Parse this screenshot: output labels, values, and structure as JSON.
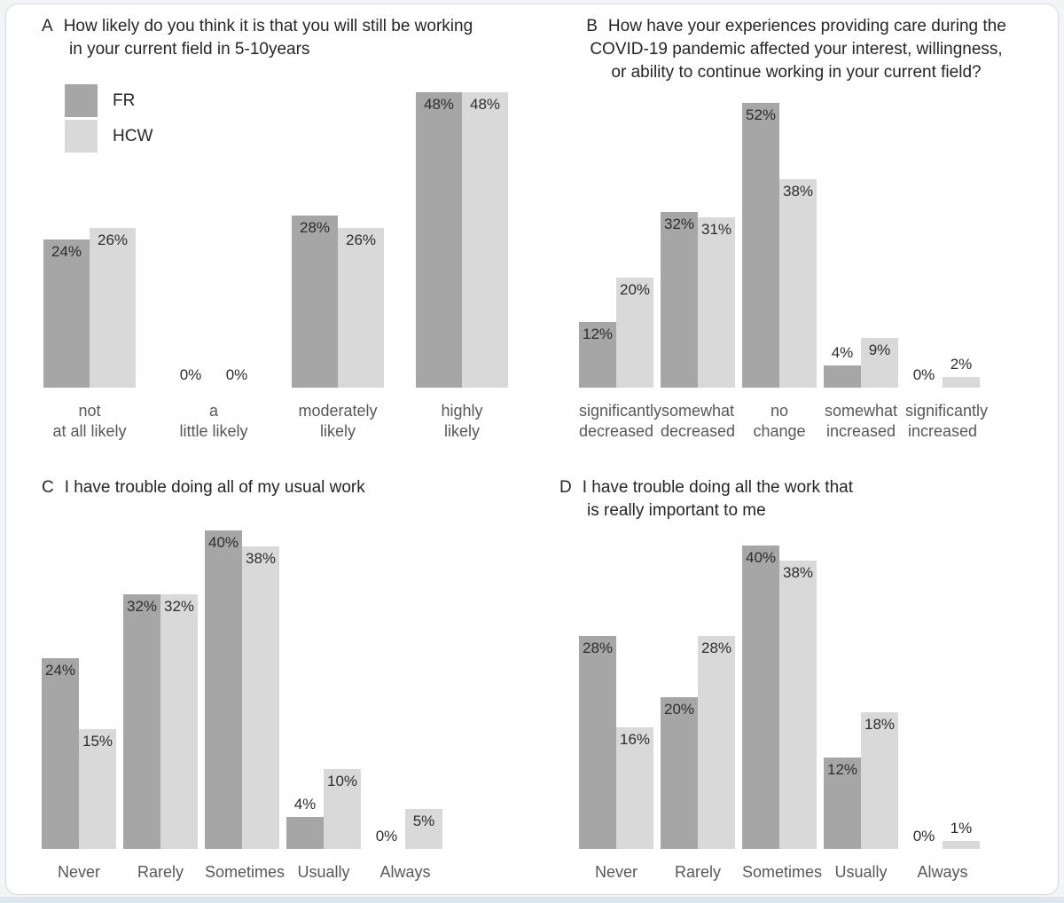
{
  "figure": {
    "background_color": "#ffffff",
    "page_background_color": "#f2f4f7",
    "legend": {
      "position": "top-left-of-panel-A",
      "items": [
        {
          "label": "FR",
          "color": "#a6a6a6"
        },
        {
          "label": "HCW",
          "color": "#d9d9d9"
        }
      ]
    },
    "value_label_color": "#2d2d2d",
    "category_label_color": "#585858"
  },
  "chart_data": [
    {
      "type": "bar",
      "panel_letter": "A",
      "title_lines": [
        "How likely do you think it is that you will still be working",
        "in your current field in 5-10years"
      ],
      "title_align": "left",
      "categories": [
        "not\nat all likely",
        "a\nlittle likely",
        "moderately\nlikely",
        "highly\nlikely"
      ],
      "series": [
        {
          "name": "FR",
          "values": [
            24,
            0,
            28,
            48
          ],
          "labels": [
            "24%",
            "0%",
            "28%",
            "48%"
          ]
        },
        {
          "name": "HCW",
          "values": [
            26,
            0,
            26,
            48
          ],
          "labels": [
            "26%",
            "0%",
            "26%",
            "48%"
          ]
        }
      ],
      "value_suffix": "%",
      "ylim": [
        0,
        49
      ],
      "grid": false,
      "legend_position": "top-left"
    },
    {
      "type": "bar",
      "panel_letter": "B",
      "title_lines": [
        "How have your experiences providing care during the",
        "COVID-19 pandemic affected your interest, willingness,",
        "or ability to continue working in your current field?"
      ],
      "title_align": "center",
      "categories": [
        "significantly\ndecreased",
        "somewhat\ndecreased",
        "no\nchange",
        "somewhat\nincreased",
        "significantly\nincreased"
      ],
      "series": [
        {
          "name": "FR",
          "values": [
            12,
            32,
            52,
            4,
            0
          ],
          "labels": [
            "12%",
            "32%",
            "52%",
            "4%",
            "0%"
          ]
        },
        {
          "name": "HCW",
          "values": [
            20,
            31,
            38,
            9,
            2
          ],
          "labels": [
            "20%",
            "31%",
            "38%",
            "9%",
            "2%"
          ]
        }
      ],
      "value_suffix": "%",
      "ylim": [
        0,
        55
      ],
      "grid": false,
      "legend_position": "none"
    },
    {
      "type": "bar",
      "panel_letter": "C",
      "title_lines": [
        "I have trouble doing all of my usual work"
      ],
      "title_align": "left",
      "categories": [
        "Never",
        "Rarely",
        "Sometimes",
        "Usually",
        "Always"
      ],
      "series": [
        {
          "name": "FR",
          "values": [
            24,
            32,
            40,
            4,
            0
          ],
          "labels": [
            "24%",
            "32%",
            "40%",
            "4%",
            "0%"
          ]
        },
        {
          "name": "HCW",
          "values": [
            15,
            32,
            38,
            10,
            5
          ],
          "labels": [
            "15%",
            "32%",
            "38%",
            "10%",
            "5%"
          ]
        }
      ],
      "value_suffix": "%",
      "ylim": [
        0,
        41
      ],
      "grid": false,
      "legend_position": "none"
    },
    {
      "type": "bar",
      "panel_letter": "D",
      "title_lines": [
        "I have trouble doing all the work that",
        "is really important to me"
      ],
      "title_align": "left",
      "categories": [
        "Never",
        "Rarely",
        "Sometimes",
        "Usually",
        "Always"
      ],
      "series": [
        {
          "name": "FR",
          "values": [
            28,
            20,
            40,
            12,
            0
          ],
          "labels": [
            "28%",
            "20%",
            "40%",
            "12%",
            "0%"
          ]
        },
        {
          "name": "HCW",
          "values": [
            16,
            28,
            38,
            18,
            1
          ],
          "labels": [
            "16%",
            "28%",
            "38%",
            "18%",
            "1%"
          ]
        }
      ],
      "value_suffix": "%",
      "ylim": [
        0,
        43
      ],
      "grid": false,
      "legend_position": "none"
    }
  ]
}
